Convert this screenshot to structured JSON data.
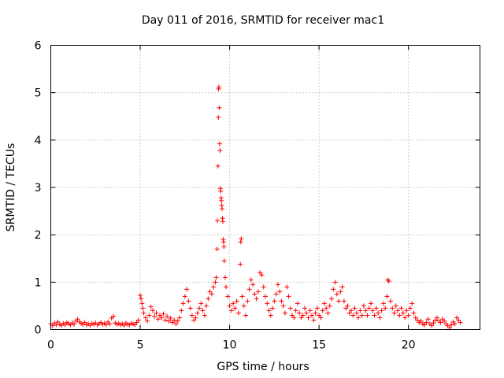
{
  "chart_data": {
    "type": "scatter",
    "title": "Day 011 of 2016, SRMTID for receiver mac1",
    "xlabel": "GPS time / hours",
    "ylabel": "SRMTID / TECUs",
    "xlim": [
      0,
      24
    ],
    "ylim": [
      0,
      6
    ],
    "xticks": [
      0,
      5,
      10,
      15,
      20
    ],
    "yticks": [
      0,
      1,
      2,
      3,
      4,
      5,
      6
    ],
    "xtick_labels": [
      "0",
      "5",
      "10",
      "15",
      "20"
    ],
    "ytick_labels": [
      "0",
      "1",
      "2",
      "3",
      "4",
      "5",
      "6"
    ],
    "grid": true,
    "marker": "+",
    "color": "#ff0000",
    "series": [
      {
        "name": "SRMTID",
        "points": [
          [
            0.0,
            0.12
          ],
          [
            0.1,
            0.08
          ],
          [
            0.2,
            0.14
          ],
          [
            0.3,
            0.1
          ],
          [
            0.4,
            0.16
          ],
          [
            0.5,
            0.11
          ],
          [
            0.6,
            0.09
          ],
          [
            0.7,
            0.13
          ],
          [
            0.8,
            0.1
          ],
          [
            0.9,
            0.15
          ],
          [
            1.0,
            0.12
          ],
          [
            1.1,
            0.1
          ],
          [
            1.2,
            0.14
          ],
          [
            1.3,
            0.11
          ],
          [
            1.4,
            0.18
          ],
          [
            1.5,
            0.22
          ],
          [
            1.6,
            0.16
          ],
          [
            1.7,
            0.13
          ],
          [
            1.8,
            0.11
          ],
          [
            1.9,
            0.15
          ],
          [
            2.0,
            0.1
          ],
          [
            2.1,
            0.12
          ],
          [
            2.2,
            0.09
          ],
          [
            2.3,
            0.13
          ],
          [
            2.4,
            0.11
          ],
          [
            2.5,
            0.14
          ],
          [
            2.6,
            0.1
          ],
          [
            2.7,
            0.12
          ],
          [
            2.8,
            0.15
          ],
          [
            2.9,
            0.11
          ],
          [
            3.0,
            0.13
          ],
          [
            3.1,
            0.1
          ],
          [
            3.2,
            0.16
          ],
          [
            3.3,
            0.12
          ],
          [
            3.4,
            0.24
          ],
          [
            3.5,
            0.28
          ],
          [
            3.6,
            0.14
          ],
          [
            3.7,
            0.11
          ],
          [
            3.8,
            0.13
          ],
          [
            3.9,
            0.1
          ],
          [
            4.0,
            0.12
          ],
          [
            4.1,
            0.09
          ],
          [
            4.2,
            0.14
          ],
          [
            4.3,
            0.11
          ],
          [
            4.4,
            0.1
          ],
          [
            4.5,
            0.13
          ],
          [
            4.6,
            0.12
          ],
          [
            4.7,
            0.1
          ],
          [
            4.8,
            0.15
          ],
          [
            4.9,
            0.2
          ],
          [
            5.0,
            0.72
          ],
          [
            5.05,
            0.65
          ],
          [
            5.1,
            0.55
          ],
          [
            5.15,
            0.45
          ],
          [
            5.2,
            0.35
          ],
          [
            5.3,
            0.25
          ],
          [
            5.4,
            0.18
          ],
          [
            5.5,
            0.3
          ],
          [
            5.6,
            0.48
          ],
          [
            5.7,
            0.4
          ],
          [
            5.8,
            0.28
          ],
          [
            5.9,
            0.35
          ],
          [
            6.0,
            0.22
          ],
          [
            6.1,
            0.3
          ],
          [
            6.2,
            0.25
          ],
          [
            6.3,
            0.33
          ],
          [
            6.4,
            0.2
          ],
          [
            6.5,
            0.28
          ],
          [
            6.6,
            0.18
          ],
          [
            6.7,
            0.24
          ],
          [
            6.8,
            0.15
          ],
          [
            6.9,
            0.2
          ],
          [
            7.0,
            0.12
          ],
          [
            7.1,
            0.18
          ],
          [
            7.2,
            0.25
          ],
          [
            7.3,
            0.4
          ],
          [
            7.4,
            0.55
          ],
          [
            7.5,
            0.7
          ],
          [
            7.6,
            0.85
          ],
          [
            7.7,
            0.6
          ],
          [
            7.8,
            0.45
          ],
          [
            7.9,
            0.3
          ],
          [
            8.0,
            0.2
          ],
          [
            8.1,
            0.25
          ],
          [
            8.2,
            0.35
          ],
          [
            8.3,
            0.45
          ],
          [
            8.4,
            0.55
          ],
          [
            8.5,
            0.4
          ],
          [
            8.6,
            0.3
          ],
          [
            8.7,
            0.5
          ],
          [
            8.8,
            0.65
          ],
          [
            8.9,
            0.8
          ],
          [
            9.0,
            0.75
          ],
          [
            9.1,
            0.9
          ],
          [
            9.2,
            1.0
          ],
          [
            9.25,
            1.1
          ],
          [
            9.3,
            1.7
          ],
          [
            9.32,
            2.3
          ],
          [
            9.35,
            3.45
          ],
          [
            9.37,
            4.48
          ],
          [
            9.38,
            5.08
          ],
          [
            9.4,
            5.12
          ],
          [
            9.42,
            4.68
          ],
          [
            9.44,
            3.92
          ],
          [
            9.46,
            3.78
          ],
          [
            9.48,
            2.98
          ],
          [
            9.5,
            2.92
          ],
          [
            9.52,
            2.78
          ],
          [
            9.54,
            2.72
          ],
          [
            9.56,
            2.62
          ],
          [
            9.58,
            2.55
          ],
          [
            9.6,
            2.35
          ],
          [
            9.62,
            2.28
          ],
          [
            9.64,
            1.9
          ],
          [
            9.66,
            1.85
          ],
          [
            9.68,
            1.75
          ],
          [
            9.7,
            1.45
          ],
          [
            9.75,
            1.1
          ],
          [
            9.8,
            0.9
          ],
          [
            9.9,
            0.7
          ],
          [
            10.0,
            0.5
          ],
          [
            10.1,
            0.4
          ],
          [
            10.2,
            0.55
          ],
          [
            10.3,
            0.45
          ],
          [
            10.4,
            0.6
          ],
          [
            10.5,
            0.35
          ],
          [
            10.6,
            1.38
          ],
          [
            10.62,
            1.85
          ],
          [
            10.65,
            1.92
          ],
          [
            10.7,
            0.7
          ],
          [
            10.8,
            0.5
          ],
          [
            10.9,
            0.3
          ],
          [
            11.0,
            0.6
          ],
          [
            11.1,
            0.85
          ],
          [
            11.2,
            1.05
          ],
          [
            11.3,
            0.95
          ],
          [
            11.4,
            0.75
          ],
          [
            11.5,
            0.65
          ],
          [
            11.6,
            0.8
          ],
          [
            11.7,
            1.2
          ],
          [
            11.8,
            1.15
          ],
          [
            11.9,
            0.9
          ],
          [
            12.0,
            0.7
          ],
          [
            12.1,
            0.55
          ],
          [
            12.2,
            0.4
          ],
          [
            12.3,
            0.3
          ],
          [
            12.4,
            0.45
          ],
          [
            12.5,
            0.6
          ],
          [
            12.6,
            0.75
          ],
          [
            12.7,
            0.95
          ],
          [
            12.8,
            0.8
          ],
          [
            12.9,
            0.6
          ],
          [
            13.0,
            0.5
          ],
          [
            13.1,
            0.35
          ],
          [
            13.2,
            0.9
          ],
          [
            13.3,
            0.7
          ],
          [
            13.4,
            0.45
          ],
          [
            13.5,
            0.3
          ],
          [
            13.6,
            0.25
          ],
          [
            13.7,
            0.4
          ],
          [
            13.8,
            0.55
          ],
          [
            13.9,
            0.35
          ],
          [
            14.0,
            0.25
          ],
          [
            14.1,
            0.3
          ],
          [
            14.2,
            0.45
          ],
          [
            14.3,
            0.35
          ],
          [
            14.4,
            0.25
          ],
          [
            14.5,
            0.4
          ],
          [
            14.6,
            0.3
          ],
          [
            14.7,
            0.2
          ],
          [
            14.8,
            0.35
          ],
          [
            14.9,
            0.45
          ],
          [
            15.0,
            0.3
          ],
          [
            15.1,
            0.25
          ],
          [
            15.2,
            0.4
          ],
          [
            15.3,
            0.55
          ],
          [
            15.4,
            0.45
          ],
          [
            15.5,
            0.35
          ],
          [
            15.6,
            0.5
          ],
          [
            15.7,
            0.65
          ],
          [
            15.8,
            0.85
          ],
          [
            15.9,
            1.0
          ],
          [
            16.0,
            0.75
          ],
          [
            16.1,
            0.6
          ],
          [
            16.2,
            0.8
          ],
          [
            16.3,
            0.9
          ],
          [
            16.4,
            0.6
          ],
          [
            16.5,
            0.45
          ],
          [
            16.6,
            0.5
          ],
          [
            16.7,
            0.35
          ],
          [
            16.8,
            0.4
          ],
          [
            16.9,
            0.3
          ],
          [
            17.0,
            0.45
          ],
          [
            17.1,
            0.35
          ],
          [
            17.2,
            0.25
          ],
          [
            17.3,
            0.4
          ],
          [
            17.4,
            0.3
          ],
          [
            17.5,
            0.5
          ],
          [
            17.6,
            0.4
          ],
          [
            17.7,
            0.3
          ],
          [
            17.8,
            0.45
          ],
          [
            17.9,
            0.55
          ],
          [
            18.0,
            0.4
          ],
          [
            18.1,
            0.3
          ],
          [
            18.2,
            0.45
          ],
          [
            18.3,
            0.35
          ],
          [
            18.4,
            0.25
          ],
          [
            18.5,
            0.4
          ],
          [
            18.6,
            0.55
          ],
          [
            18.7,
            0.45
          ],
          [
            18.8,
            0.7
          ],
          [
            18.85,
            1.05
          ],
          [
            18.9,
            1.02
          ],
          [
            19.0,
            0.6
          ],
          [
            19.1,
            0.45
          ],
          [
            19.2,
            0.35
          ],
          [
            19.3,
            0.5
          ],
          [
            19.4,
            0.4
          ],
          [
            19.5,
            0.3
          ],
          [
            19.6,
            0.45
          ],
          [
            19.7,
            0.35
          ],
          [
            19.8,
            0.25
          ],
          [
            19.9,
            0.4
          ],
          [
            20.0,
            0.3
          ],
          [
            20.1,
            0.45
          ],
          [
            20.2,
            0.55
          ],
          [
            20.3,
            0.35
          ],
          [
            20.4,
            0.25
          ],
          [
            20.5,
            0.2
          ],
          [
            20.6,
            0.15
          ],
          [
            20.7,
            0.18
          ],
          [
            20.8,
            0.12
          ],
          [
            20.9,
            0.1
          ],
          [
            21.0,
            0.15
          ],
          [
            21.1,
            0.22
          ],
          [
            21.2,
            0.12
          ],
          [
            21.3,
            0.08
          ],
          [
            21.4,
            0.14
          ],
          [
            21.5,
            0.2
          ],
          [
            21.6,
            0.25
          ],
          [
            21.7,
            0.18
          ],
          [
            21.8,
            0.15
          ],
          [
            21.9,
            0.22
          ],
          [
            22.0,
            0.18
          ],
          [
            22.1,
            0.12
          ],
          [
            22.2,
            0.08
          ],
          [
            22.3,
            0.04
          ],
          [
            22.4,
            0.1
          ],
          [
            22.5,
            0.16
          ],
          [
            22.6,
            0.12
          ],
          [
            22.7,
            0.25
          ],
          [
            22.8,
            0.2
          ],
          [
            22.9,
            0.15
          ]
        ]
      }
    ]
  }
}
